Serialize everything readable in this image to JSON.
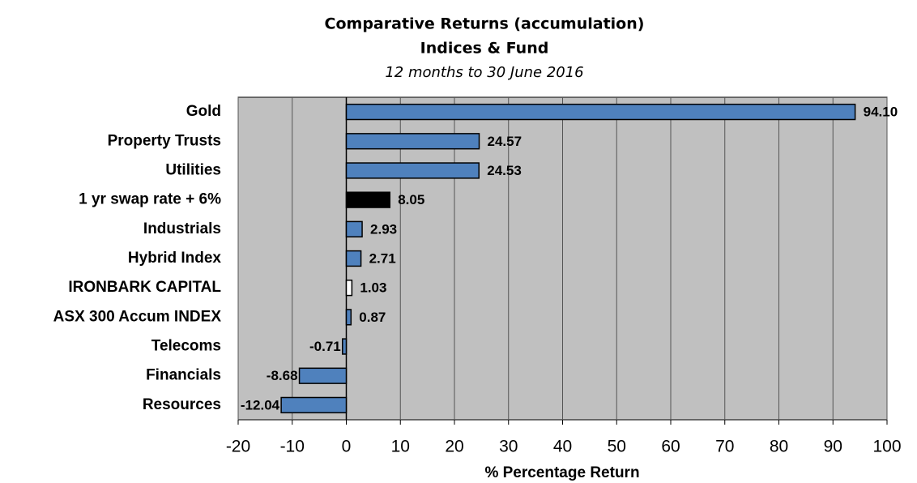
{
  "chart_data": {
    "type": "bar",
    "orientation": "horizontal",
    "title": "Comparative Returns (accumulation)",
    "subtitle": "Indices & Fund",
    "note": "12 months to 30 June 2016",
    "x_label": "% Percentage Return",
    "categories": [
      "Gold",
      "Property Trusts",
      "Utilities",
      "1 yr swap rate + 6%",
      "Industrials",
      "Hybrid Index",
      "IRONBARK CAPITAL",
      "ASX 300 Accum INDEX",
      "Telecoms",
      "Financials",
      "Resources"
    ],
    "values": [
      94.1,
      24.57,
      24.53,
      8.05,
      2.93,
      2.71,
      1.03,
      0.87,
      -0.71,
      -8.68,
      -12.04
    ],
    "value_labels": [
      "94.10",
      "24.57",
      "24.53",
      "8.05",
      "2.93",
      "2.71",
      "1.03",
      "0.87",
      "-0.71",
      "-8.68",
      "-12.04"
    ],
    "colors": [
      "#4f81bd",
      "#4f81bd",
      "#4f81bd",
      "#000000",
      "#4f81bd",
      "#4f81bd",
      "#ffffff",
      "#4f81bd",
      "#4f81bd",
      "#4f81bd",
      "#4f81bd"
    ],
    "xlim": [
      -20,
      100
    ],
    "xticks": [
      -20,
      -10,
      0,
      10,
      20,
      30,
      40,
      50,
      60,
      70,
      80,
      90,
      100
    ],
    "grid": true
  }
}
